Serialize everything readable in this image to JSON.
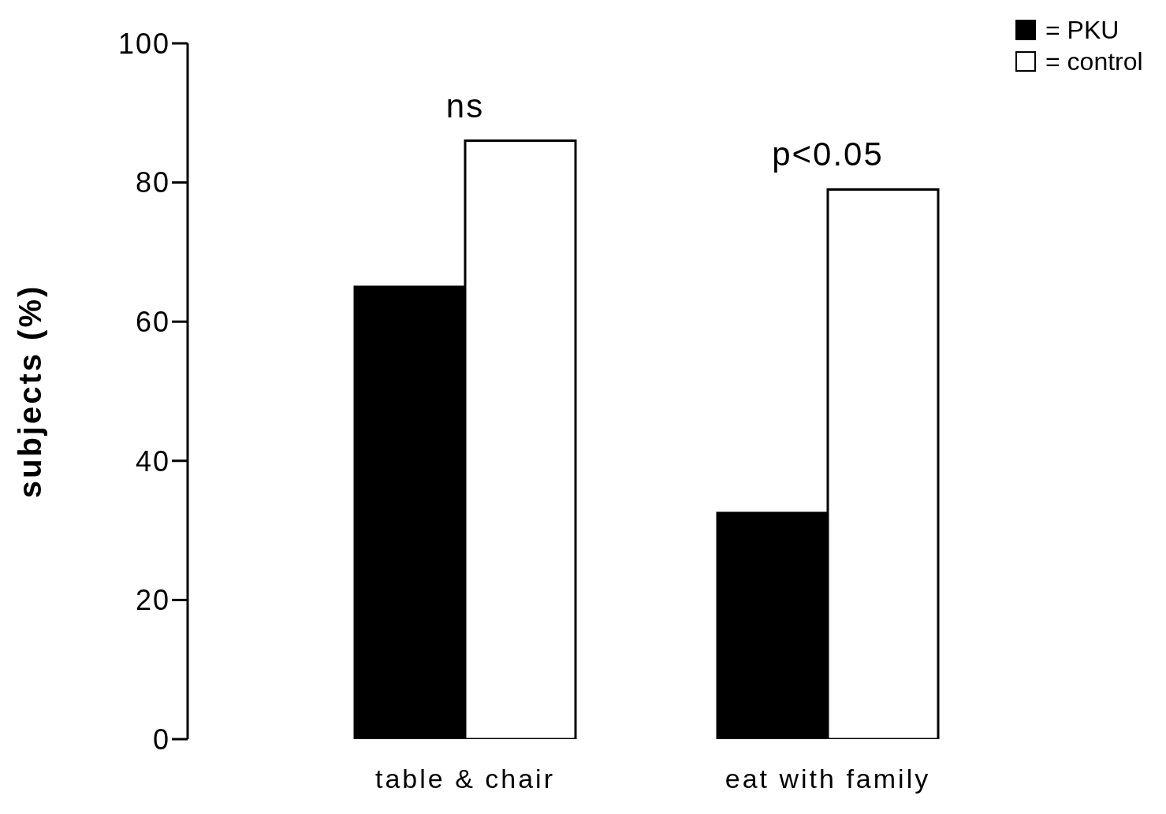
{
  "chart_data": {
    "type": "bar",
    "ylabel": "subjects (%)",
    "categories": [
      "table & chair",
      "eat with family"
    ],
    "series": [
      {
        "name": "= PKU",
        "color": "#000000",
        "values": [
          65,
          32.5
        ]
      },
      {
        "name": "= control",
        "color": "#ffffff",
        "values": [
          86,
          79
        ]
      }
    ],
    "ylim": [
      0,
      100
    ],
    "yticks": [
      0,
      20,
      40,
      60,
      80,
      100
    ],
    "grid": false,
    "legend": "top right",
    "annotations": [
      "ns",
      "p<0.05"
    ]
  }
}
